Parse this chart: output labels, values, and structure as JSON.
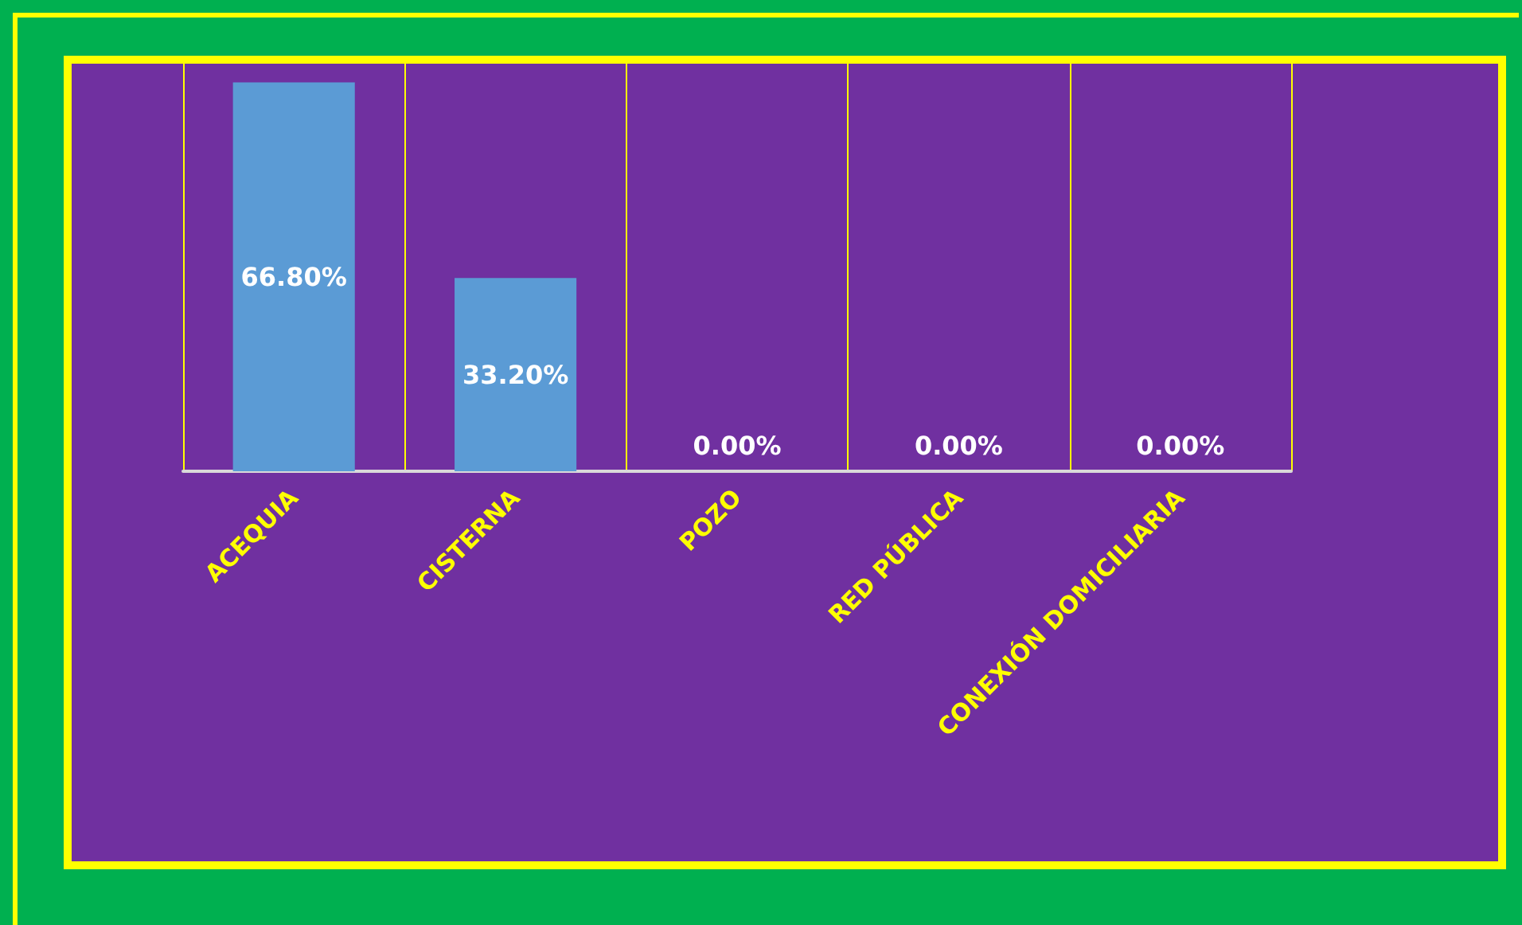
{
  "chart_data": {
    "type": "bar",
    "categories": [
      "ACEQUIA",
      "CISTERNA",
      "POZO",
      "RED PÚBLICA",
      "CONEXIÓN DOMICILIARIA"
    ],
    "values": [
      66.8,
      33.2,
      0,
      0,
      0
    ],
    "value_labels": [
      "66.80%",
      "33.20%",
      "0.00%",
      "0.00%",
      "0.00%"
    ],
    "color": "#5b9bd5",
    "grid": "x"
  }
}
